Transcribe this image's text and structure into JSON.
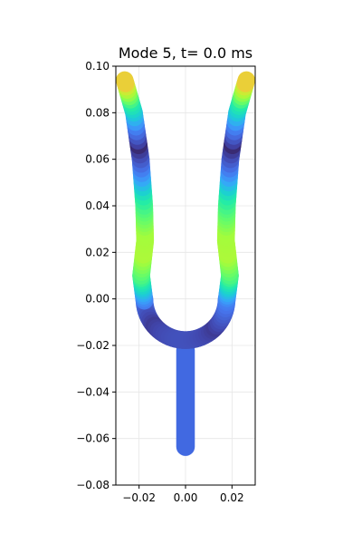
{
  "chart_data": {
    "type": "heatmap",
    "title": "Mode 5, t=  0.0 ms",
    "xlabel": "",
    "ylabel": "",
    "xlim": [
      -0.03,
      0.03
    ],
    "ylim": [
      -0.08,
      0.1
    ],
    "x_ticks": [
      -0.02,
      0.0,
      0.02
    ],
    "x_tick_labels": [
      "−0.02",
      "0.00",
      "0.02"
    ],
    "y_ticks": [
      -0.08,
      -0.06,
      -0.04,
      -0.02,
      0.0,
      0.02,
      0.04,
      0.06,
      0.08,
      0.1
    ],
    "y_tick_labels": [
      "−0.08",
      "−0.06",
      "−0.04",
      "−0.02",
      "0.00",
      "0.02",
      "0.04",
      "0.06",
      "0.08",
      "0.10"
    ],
    "grid": true,
    "colormap": "turbo",
    "handle_color": "#4169e1",
    "shape": {
      "prong_centerline": [
        [
          0.0177,
          -0.0008
        ],
        [
          0.0191,
          0.01
        ],
        [
          0.0174,
          0.025
        ],
        [
          0.0178,
          0.04
        ],
        [
          0.0193,
          0.06
        ],
        [
          0.0222,
          0.08
        ],
        [
          0.0262,
          0.094
        ]
      ],
      "bend_center": [
        0.0,
        0.0
      ],
      "bend_radius": 0.0177,
      "prong_width": 0.0076,
      "handle": {
        "x_center": 0.0,
        "width": 0.008,
        "y_top": -0.022,
        "y_bottom": -0.0635
      }
    },
    "displacement_profile": [
      {
        "y": -0.022,
        "value": 0.16
      },
      {
        "y": -0.012,
        "value": 0.08
      },
      {
        "y": 0.0,
        "value": 0.22
      },
      {
        "y": 0.01,
        "value": 0.55
      },
      {
        "y": 0.02,
        "value": 0.72
      },
      {
        "y": 0.03,
        "value": 0.7
      },
      {
        "y": 0.045,
        "value": 0.5
      },
      {
        "y": 0.058,
        "value": 0.2
      },
      {
        "y": 0.067,
        "value": 0.05
      },
      {
        "y": 0.075,
        "value": 0.22
      },
      {
        "y": 0.085,
        "value": 0.5
      },
      {
        "y": 0.09,
        "value": 0.7
      },
      {
        "y": 0.095,
        "value": 0.93
      },
      {
        "y": 0.1,
        "value": 1.0
      }
    ]
  }
}
